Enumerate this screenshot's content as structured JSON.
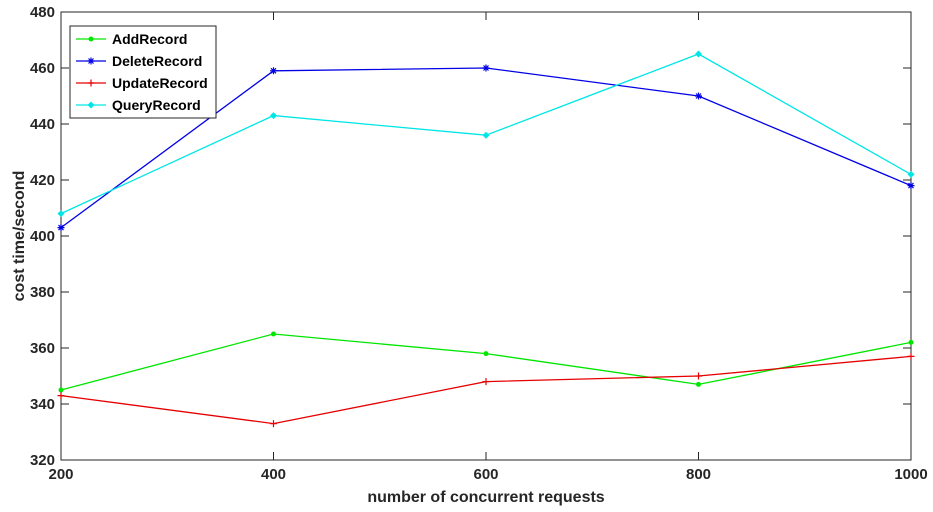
{
  "chart_data": {
    "type": "line",
    "title": "",
    "xlabel": "number of concurrent requests",
    "ylabel": "cost time/second",
    "x": [
      200,
      400,
      600,
      800,
      1000
    ],
    "xlim": [
      200,
      1000
    ],
    "ylim": [
      320,
      480
    ],
    "xticks": [
      200,
      400,
      600,
      800,
      1000
    ],
    "yticks": [
      320,
      340,
      360,
      380,
      400,
      420,
      440,
      460,
      480
    ],
    "grid": false,
    "legend_position": "top-left",
    "series": [
      {
        "name": "AddRecord",
        "color": "#00e600",
        "marker": "dot",
        "values": [
          345,
          365,
          358,
          347,
          362
        ]
      },
      {
        "name": "DeleteRecord",
        "color": "#0000e6",
        "marker": "star",
        "values": [
          403,
          459,
          460,
          450,
          418
        ]
      },
      {
        "name": "UpdateRecord",
        "color": "#e60000",
        "marker": "plus",
        "values": [
          343,
          333,
          348,
          350,
          357
        ]
      },
      {
        "name": "QueryRecord",
        "color": "#00e6e6",
        "marker": "diamond",
        "values": [
          408,
          443,
          436,
          465,
          422
        ]
      }
    ]
  }
}
